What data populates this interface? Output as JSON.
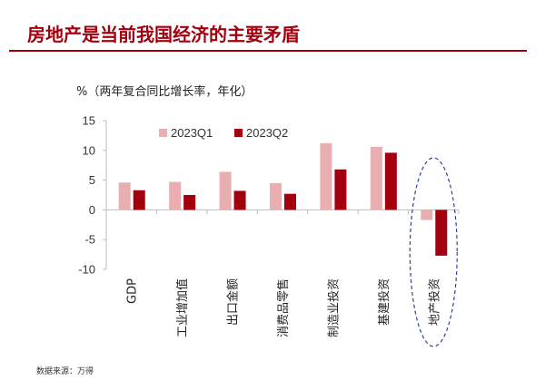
{
  "slide": {
    "title": "房地产是当前我国经济的主要矛盾",
    "source": "数据来源：万得",
    "accent_color": "#a3000f"
  },
  "chart_data": {
    "type": "bar",
    "ylabel": "%（两年复合同比增长率，年化）",
    "ylim": [
      -10,
      15
    ],
    "yticks": [
      -10,
      -5,
      0,
      5,
      10,
      15
    ],
    "categories": [
      "GDP",
      "工业增加值",
      "出口金额",
      "消费品零售",
      "制造业投资",
      "基建投资",
      "地产投资"
    ],
    "series": [
      {
        "name": "2023Q1",
        "color": "#e8aeb0",
        "values": [
          4.6,
          4.7,
          6.4,
          4.5,
          11.2,
          10.6,
          -1.7
        ]
      },
      {
        "name": "2023Q2",
        "color": "#a3000f",
        "values": [
          3.3,
          2.5,
          3.2,
          2.7,
          6.8,
          9.6,
          -7.7
        ]
      }
    ],
    "legend_position": "top-left",
    "highlight": {
      "category": "地产投资",
      "shape": "dashed-ellipse",
      "color": "#2f3fa8"
    },
    "grid": false
  }
}
